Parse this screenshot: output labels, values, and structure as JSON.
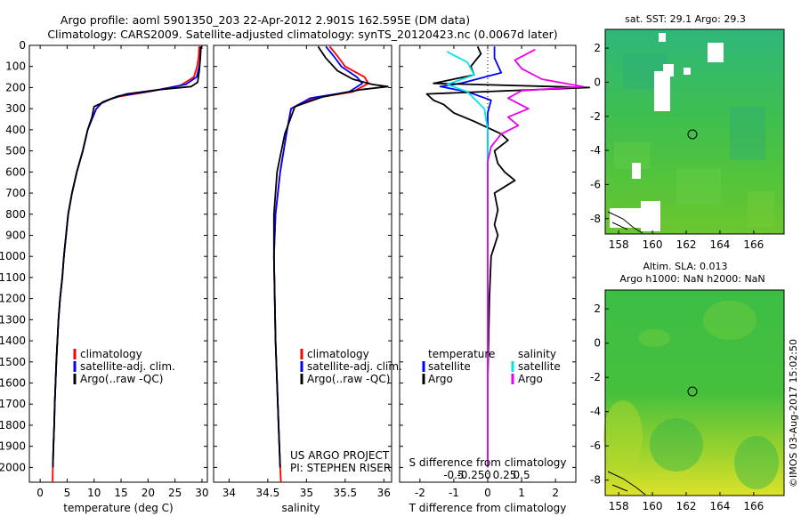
{
  "header": {
    "line1": "Argo profile: aoml 5901350_203 22-Apr-2012 2.901S 162.595E (DM data)",
    "line2": "Climatology: CARS2009. Satellite-adjusted climatology: synTS_20120423.nc (0.0067d later)"
  },
  "colors": {
    "climatology": "#ff0000",
    "satellite": "#0000ff",
    "argo": "#000000",
    "cyan": "#00e5ee",
    "magenta": "#ee00ee"
  },
  "chart_data": [
    {
      "type": "line",
      "xlabel": "temperature (deg C)",
      "xlim": [
        -2,
        31
      ],
      "xticks": [
        0,
        5,
        10,
        15,
        20,
        25,
        30
      ],
      "ylim": [
        2070,
        0
      ],
      "yticks": [
        0,
        100,
        200,
        300,
        400,
        500,
        600,
        700,
        800,
        900,
        1000,
        1100,
        1200,
        1300,
        1400,
        1500,
        1600,
        1700,
        1800,
        1900,
        2000
      ],
      "legend": [
        "climatology",
        "satellite-adj. clim.",
        "Argo(..raw -QC)"
      ],
      "series": [
        {
          "name": "climatology",
          "color": "#ff0000",
          "points": [
            [
              29.5,
              5
            ],
            [
              29.4,
              50
            ],
            [
              29.1,
              100
            ],
            [
              28.5,
              150
            ],
            [
              26,
              190
            ],
            [
              20,
              220
            ],
            [
              14,
              245
            ],
            [
              11.5,
              270
            ],
            [
              10.4,
              300
            ],
            [
              9.6,
              350
            ],
            [
              8.8,
              400
            ],
            [
              7.9,
              500
            ],
            [
              6.8,
              600
            ],
            [
              5.9,
              700
            ],
            [
              5.2,
              800
            ],
            [
              4.8,
              900
            ],
            [
              4.4,
              1000
            ],
            [
              4.1,
              1100
            ],
            [
              3.7,
              1200
            ],
            [
              3.4,
              1300
            ],
            [
              3.2,
              1400
            ],
            [
              3.0,
              1500
            ],
            [
              2.85,
              1600
            ],
            [
              2.7,
              1700
            ],
            [
              2.6,
              1800
            ],
            [
              2.45,
              1900
            ],
            [
              2.35,
              2000
            ],
            [
              2.3,
              2070
            ]
          ]
        },
        {
          "name": "satellite-adj. clim.",
          "color": "#0000ff",
          "points": [
            [
              29.8,
              5
            ],
            [
              29.7,
              50
            ],
            [
              29.5,
              100
            ],
            [
              29,
              150
            ],
            [
              27,
              185
            ],
            [
              21,
              215
            ],
            [
              14.5,
              240
            ],
            [
              11.6,
              268
            ],
            [
              10.4,
              300
            ],
            [
              9.6,
              350
            ],
            [
              8.8,
              400
            ],
            [
              7.9,
              500
            ],
            [
              6.8,
              600
            ],
            [
              5.9,
              700
            ],
            [
              5.2,
              800
            ],
            [
              4.8,
              900
            ],
            [
              4.4,
              1000
            ],
            [
              4.1,
              1100
            ],
            [
              3.7,
              1200
            ],
            [
              3.4,
              1300
            ],
            [
              3.2,
              1400
            ],
            [
              3.0,
              1500
            ],
            [
              2.85,
              1600
            ],
            [
              2.7,
              1700
            ],
            [
              2.6,
              1800
            ],
            [
              2.45,
              1900
            ],
            [
              2.35,
              2000
            ]
          ]
        },
        {
          "name": "Argo(..raw -QC)",
          "color": "#000000",
          "points": [
            [
              29.8,
              5
            ],
            [
              29.7,
              60
            ],
            [
              29.5,
              120
            ],
            [
              29.2,
              175
            ],
            [
              28,
              195
            ],
            [
              22,
              210
            ],
            [
              16,
              230
            ],
            [
              13,
              255
            ],
            [
              10,
              290
            ],
            [
              9.6,
              340
            ],
            [
              8.8,
              400
            ],
            [
              7.9,
              500
            ],
            [
              6.8,
              600
            ],
            [
              5.9,
              700
            ],
            [
              5.2,
              800
            ],
            [
              4.8,
              900
            ],
            [
              4.4,
              1000
            ],
            [
              4.1,
              1100
            ],
            [
              3.7,
              1200
            ],
            [
              3.4,
              1300
            ],
            [
              3.2,
              1400
            ],
            [
              3.0,
              1500
            ],
            [
              2.85,
              1600
            ],
            [
              2.7,
              1700
            ],
            [
              2.6,
              1800
            ],
            [
              2.45,
              1900
            ],
            [
              2.35,
              2000
            ]
          ]
        }
      ]
    },
    {
      "type": "line",
      "xlabel": "salinity",
      "xlim": [
        33.8,
        36.1
      ],
      "xticks": [
        34,
        34.5,
        35,
        35.5,
        36
      ],
      "ylim": [
        2070,
        0
      ],
      "legend": [
        "climatology",
        "satellite-adj. clim.",
        "Argo(..raw -QC)"
      ],
      "annotation": [
        "US ARGO PROJECT",
        "PI: STEPHEN RISER"
      ],
      "series": [
        {
          "name": "climatology",
          "color": "#ff0000",
          "points": [
            [
              35.3,
              5
            ],
            [
              35.4,
              50
            ],
            [
              35.5,
              100
            ],
            [
              35.75,
              150
            ],
            [
              35.8,
              180
            ],
            [
              35.6,
              220
            ],
            [
              35.1,
              250
            ],
            [
              34.8,
              300
            ],
            [
              34.75,
              400
            ],
            [
              34.66,
              600
            ],
            [
              34.6,
              800
            ],
            [
              34.58,
              1000
            ],
            [
              34.59,
              1200
            ],
            [
              34.6,
              1400
            ],
            [
              34.62,
              1600
            ],
            [
              34.64,
              1800
            ],
            [
              34.66,
              2000
            ],
            [
              34.67,
              2070
            ]
          ]
        },
        {
          "name": "satellite-adj. clim.",
          "color": "#0000ff",
          "points": [
            [
              35.25,
              5
            ],
            [
              35.35,
              50
            ],
            [
              35.45,
              100
            ],
            [
              35.65,
              150
            ],
            [
              35.72,
              180
            ],
            [
              35.55,
              220
            ],
            [
              35.05,
              250
            ],
            [
              34.8,
              300
            ],
            [
              34.75,
              400
            ],
            [
              34.66,
              600
            ],
            [
              34.6,
              800
            ],
            [
              34.58,
              1000
            ],
            [
              34.59,
              1200
            ],
            [
              34.6,
              1400
            ],
            [
              34.62,
              1600
            ],
            [
              34.64,
              1800
            ],
            [
              34.66,
              2000
            ]
          ]
        },
        {
          "name": "Argo(..raw -QC)",
          "color": "#000000",
          "points": [
            [
              35.15,
              5
            ],
            [
              35.25,
              60
            ],
            [
              35.4,
              120
            ],
            [
              35.6,
              160
            ],
            [
              35.85,
              185
            ],
            [
              36.05,
              195
            ],
            [
              35.7,
              210
            ],
            [
              35.2,
              245
            ],
            [
              34.85,
              290
            ],
            [
              34.8,
              340
            ],
            [
              34.72,
              420
            ],
            [
              34.62,
              600
            ],
            [
              34.58,
              800
            ],
            [
              34.58,
              1000
            ],
            [
              34.59,
              1200
            ],
            [
              34.6,
              1400
            ],
            [
              34.62,
              1600
            ],
            [
              34.64,
              1800
            ],
            [
              34.66,
              2000
            ]
          ]
        }
      ]
    },
    {
      "type": "line",
      "xlabel": "T difference from climatology",
      "xlabel_top": "S difference from climatology",
      "xlim": [
        -2.6,
        2.6
      ],
      "xticks": [
        -2,
        -1,
        0,
        1,
        2
      ],
      "xticks_top": [
        "-0.5",
        "-0.25",
        "0",
        "0.25",
        "0.5"
      ],
      "ylim": [
        2070,
        0
      ],
      "legend_groups": [
        {
          "title": "temperature",
          "items": [
            "satellite",
            "Argo"
          ]
        },
        {
          "title": "salinity",
          "items": [
            "satellite",
            "Argo"
          ]
        }
      ],
      "series": [
        {
          "name": "temperature satellite",
          "color": "#0000ff",
          "points": [
            [
              0.2,
              5
            ],
            [
              0.2,
              60
            ],
            [
              0.4,
              130
            ],
            [
              -0.8,
              180
            ],
            [
              -1.4,
              195
            ],
            [
              -0.6,
              220
            ],
            [
              0.1,
              260
            ],
            [
              0,
              320
            ],
            [
              0,
              500
            ],
            [
              0,
              800
            ],
            [
              0,
              1200
            ],
            [
              0,
              1600
            ],
            [
              0,
              2000
            ]
          ]
        },
        {
          "name": "temperature Argo",
          "color": "#000000",
          "points": [
            [
              -0.3,
              5
            ],
            [
              -0.2,
              40
            ],
            [
              -0.5,
              100
            ],
            [
              -0.4,
              140
            ],
            [
              -1.6,
              180
            ],
            [
              3.0,
              200
            ],
            [
              -1.8,
              230
            ],
            [
              -1.6,
              260
            ],
            [
              -1.3,
              280
            ],
            [
              -1.0,
              320
            ],
            [
              -0.4,
              360
            ],
            [
              0.4,
              420
            ],
            [
              0.6,
              450
            ],
            [
              0.2,
              500
            ],
            [
              0.3,
              560
            ],
            [
              0.5,
              600
            ],
            [
              0.8,
              640
            ],
            [
              0.2,
              700
            ],
            [
              0.3,
              780
            ],
            [
              0.2,
              850
            ],
            [
              0.3,
              900
            ],
            [
              0.1,
              1000
            ],
            [
              0.05,
              1200
            ],
            [
              0,
              1600
            ],
            [
              0,
              2000
            ]
          ]
        },
        {
          "name": "salinity satellite",
          "color": "#00e5ee",
          "points": [
            [
              -1.2,
              30
            ],
            [
              -0.6,
              80
            ],
            [
              -0.4,
              140
            ],
            [
              -1.2,
              185
            ],
            [
              -0.6,
              220
            ],
            [
              -0.1,
              300
            ],
            [
              0,
              400
            ],
            [
              0,
              800
            ],
            [
              0,
              1200
            ],
            [
              0,
              1600
            ],
            [
              0,
              2000
            ]
          ]
        },
        {
          "name": "salinity Argo",
          "color": "#ee00ee",
          "points": [
            [
              1.4,
              20
            ],
            [
              0.8,
              70
            ],
            [
              1.0,
              110
            ],
            [
              1.6,
              160
            ],
            [
              2.8,
              195
            ],
            [
              1.0,
              215
            ],
            [
              0.6,
              250
            ],
            [
              1.2,
              300
            ],
            [
              0.6,
              340
            ],
            [
              0.9,
              380
            ],
            [
              0.4,
              420
            ],
            [
              0.1,
              480
            ],
            [
              0,
              550
            ],
            [
              0,
              800
            ],
            [
              0,
              1200
            ],
            [
              0,
              2000
            ]
          ]
        }
      ]
    }
  ],
  "maps": [
    {
      "title": [
        "sat. SST: 29.1 Argo: 29.3"
      ],
      "xticks": [
        158,
        160,
        162,
        164,
        166
      ],
      "yticks": [
        2,
        0,
        -2,
        -4,
        -6,
        -8
      ],
      "marker": {
        "lon": 162.6,
        "lat": -2.9
      }
    },
    {
      "title": [
        "Altim. SLA: 0.013",
        "Argo h1000: NaN h2000: NaN"
      ],
      "xticks": [
        158,
        160,
        162,
        164,
        166
      ],
      "yticks": [
        2,
        0,
        -2,
        -4,
        -6,
        -8
      ],
      "marker": {
        "lon": 162.6,
        "lat": -2.9
      }
    }
  ],
  "footer": {
    "stamp": "©IMOS 03-Aug-2017 15:02:50"
  }
}
